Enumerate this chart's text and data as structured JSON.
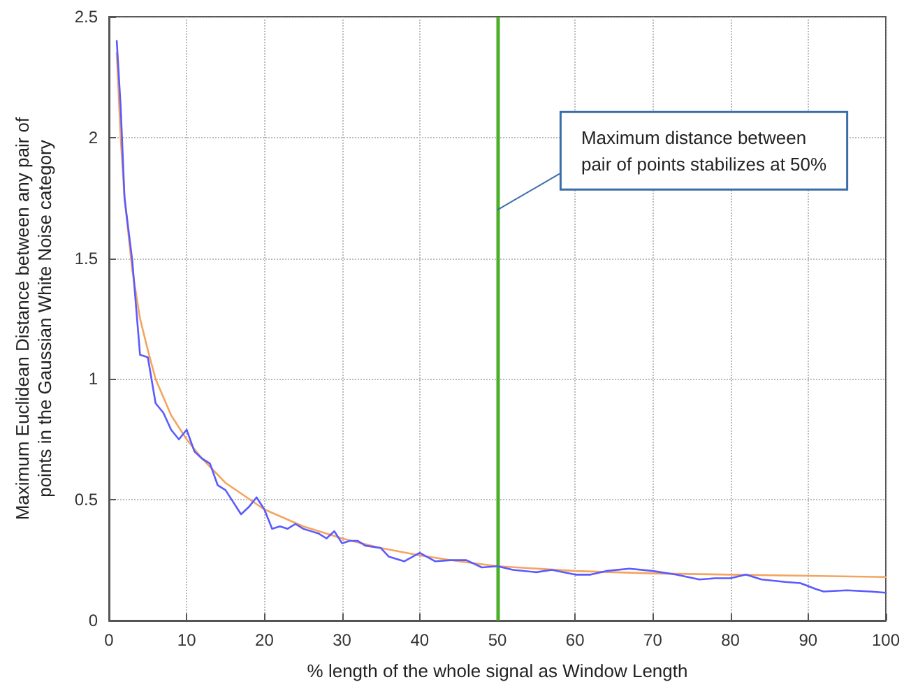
{
  "chart_data": {
    "type": "line",
    "xlabel": "% length of the whole signal as Window Length",
    "ylabel": "Maximum Euclidean Distance between any pair of\npoints in the Gaussian White Noise category",
    "xlim": [
      0,
      100
    ],
    "ylim": [
      0,
      2.5
    ],
    "xticks": [
      0,
      10,
      20,
      30,
      40,
      50,
      60,
      70,
      80,
      90,
      100
    ],
    "yticks": [
      0,
      0.5,
      1,
      1.5,
      2,
      2.5
    ],
    "grid": true,
    "marker": "none",
    "line_style": "solid",
    "series": [
      {
        "color": "#5a5aff",
        "x": [
          1,
          1.5,
          2,
          3,
          4,
          5,
          6,
          7,
          8,
          9,
          10,
          11,
          12,
          13,
          14,
          15,
          16,
          17,
          18,
          19,
          20,
          21,
          22,
          23,
          24,
          25,
          26,
          27,
          28,
          29,
          30,
          31,
          32,
          33,
          35,
          36,
          38,
          40,
          42,
          44,
          46,
          48,
          50,
          52,
          55,
          57,
          60,
          62,
          64,
          67,
          70,
          73,
          76,
          78,
          80,
          82,
          84,
          87,
          89,
          91,
          92,
          95,
          98,
          100
        ],
        "values": [
          2.4,
          2.13,
          1.75,
          1.49,
          1.1,
          1.09,
          0.9,
          0.86,
          0.79,
          0.75,
          0.79,
          0.7,
          0.67,
          0.65,
          0.56,
          0.54,
          0.49,
          0.44,
          0.47,
          0.51,
          0.46,
          0.38,
          0.39,
          0.38,
          0.4,
          0.38,
          0.37,
          0.36,
          0.34,
          0.37,
          0.32,
          0.33,
          0.33,
          0.31,
          0.3,
          0.265,
          0.245,
          0.28,
          0.245,
          0.25,
          0.25,
          0.22,
          0.225,
          0.21,
          0.2,
          0.21,
          0.19,
          0.19,
          0.205,
          0.215,
          0.205,
          0.19,
          0.17,
          0.175,
          0.175,
          0.19,
          0.17,
          0.16,
          0.155,
          0.13,
          0.12,
          0.125,
          0.12,
          0.115
        ]
      },
      {
        "color": "#f4a460",
        "x": [
          1,
          1.5,
          2,
          3,
          4,
          5,
          6,
          8,
          10,
          12,
          15,
          20,
          25,
          30,
          35,
          40,
          45,
          50,
          60,
          70,
          80,
          90,
          100
        ],
        "values": [
          2.35,
          2.0,
          1.75,
          1.45,
          1.25,
          1.12,
          1.0,
          0.85,
          0.75,
          0.67,
          0.57,
          0.46,
          0.39,
          0.34,
          0.3,
          0.27,
          0.245,
          0.225,
          0.205,
          0.195,
          0.19,
          0.185,
          0.18
        ]
      }
    ],
    "ref_lines": [
      {
        "axis": "x",
        "value": 50,
        "color": "#4caf28",
        "line_style": "solid"
      }
    ],
    "annotations": [
      {
        "text": "Maximum distance between\npair of points stabilizes at 50%",
        "x": 50,
        "y": 1.7
      }
    ]
  }
}
